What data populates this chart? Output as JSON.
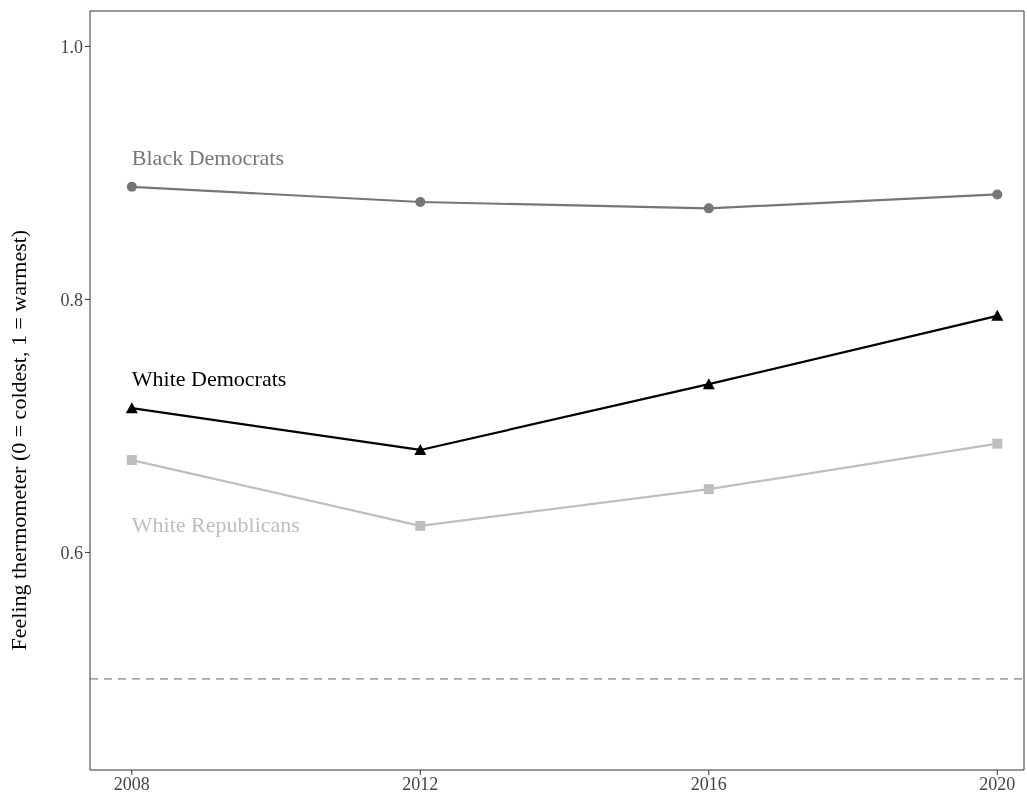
{
  "chart_data": {
    "type": "line",
    "ylabel": "Feeling thermometer (0 = coldest, 1 = warmest)",
    "x": [
      2008,
      2012,
      2016,
      2020
    ],
    "xlim": [
      2007.42,
      2020.37
    ],
    "xticks": [
      2008,
      2012,
      2016,
      2020
    ],
    "ylim": [
      0.428,
      1.028
    ],
    "yticks": [
      0.6,
      0.8,
      {
        "value": 1,
        "label": "1.0"
      }
    ],
    "line_style": "solid",
    "ref_lines": [
      {
        "axis": "y",
        "value": 0.5,
        "color": "#a6a6a6",
        "line_style": "dashed"
      }
    ],
    "series": [
      {
        "name": "Black Democrats",
        "color": "#767676",
        "marker": "circle",
        "values": [
          0.889,
          0.877,
          0.872,
          0.883
        ]
      },
      {
        "name": "White Democrats",
        "color": "#000000",
        "marker": "triangle",
        "values": [
          0.714,
          0.681,
          0.733,
          0.787
        ]
      },
      {
        "name": "White Republicans",
        "color": "#bebebe",
        "marker": "square",
        "values": [
          0.673,
          0.621,
          0.65,
          0.686
        ]
      }
    ]
  }
}
